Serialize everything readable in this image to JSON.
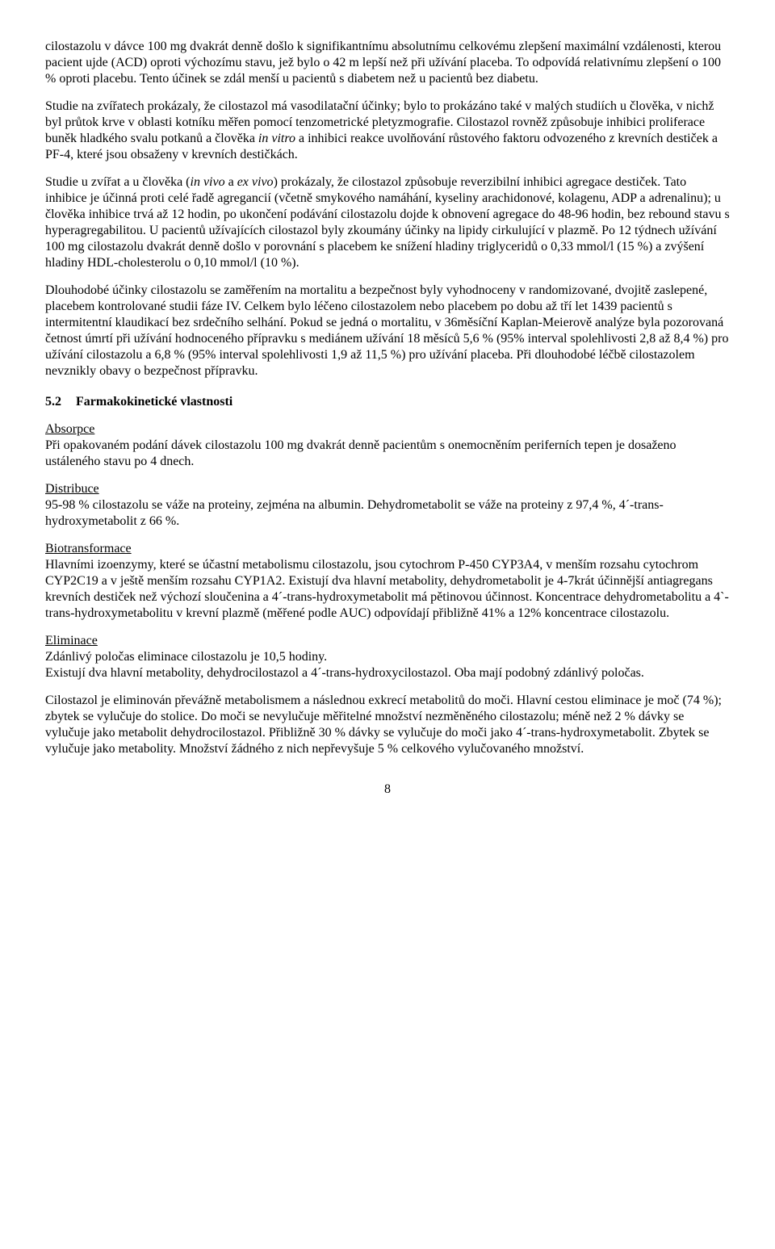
{
  "paragraphs": {
    "p1": "cilostazolu v dávce 100 mg dvakrát denně došlo k signifikantnímu absolutnímu celkovému zlepšení maximální vzdálenosti, kterou pacient ujde (ACD) oproti výchozímu stavu, jež bylo o 42 m lepší než při užívání placeba. To odpovídá relativnímu zlepšení o 100 % oproti placebu. Tento účinek se zdál menší u pacientů s diabetem než u pacientů bez diabetu.",
    "p2_pre": "Studie na zvířatech prokázaly, že cilostazol má vasodilatační účinky; bylo to prokázáno také v malých studiích u člověka, v nichž byl průtok krve v oblasti kotníku měřen pomocí tenzometrické pletyzmografie. Cilostazol rovněž způsobuje inhibici proliferace buněk hladkého svalu potkanů a člověka ",
    "p2_it": "in vitro",
    "p2_post": " a inhibici reakce uvolňování růstového faktoru odvozeného z krevních destiček a PF-4, které jsou obsaženy v krevních destičkách.",
    "p3_pre": "Studie u zvířat a u člověka (",
    "p3_it1": "in vivo",
    "p3_mid": " a ",
    "p3_it2": "ex vivo",
    "p3_post": ") prokázaly, že cilostazol způsobuje reverzibilní inhibici agregace destiček. Tato inhibice je účinná proti celé řadě agregancií (včetně smykového namáhání, kyseliny arachidonové, kolagenu, ADP a adrenalinu); u člověka inhibice trvá až 12 hodin, po ukončení podávání cilostazolu dojde k obnovení agregace do 48-96 hodin, bez rebound stavu s hyperagregabilitou. U pacientů užívajících cilostazol byly zkoumány účinky na lipidy cirkulující v plazmě. Po 12 týdnech užívání 100 mg cilostazolu dvakrát denně došlo v porovnání s placebem ke snížení hladiny triglyceridů o 0,33 mmol/l (15 %) a zvýšení hladiny HDL-cholesterolu o 0,10 mmol/l (10 %).",
    "p4": "Dlouhodobé účinky cilostazolu se zaměřením na mortalitu a bezpečnost byly vyhodnoceny v randomizované, dvojitě zaslepené, placebem kontrolované studii fáze IV. Celkem bylo léčeno cilostazolem nebo placebem po dobu až tří let 1439 pacientů s intermitentní klaudikací bez srdečního selhání. Pokud se jedná o mortalitu, v 36měsíční Kaplan-Meierově analýze byla pozorovaná četnost úmrtí při užívání hodnoceného přípravku s mediánem užívání 18 měsíců 5,6 % (95% interval spolehlivosti 2,8 až 8,4 %) pro užívání cilostazolu a 6,8 % (95% interval spolehlivosti 1,9 až 11,5 %) pro užívání placeba. Při dlouhodobé léčbě cilostazolem nevznikly obavy o bezpečnost přípravku."
  },
  "section52": {
    "num": "5.2",
    "title": "Farmakokinetické vlastnosti"
  },
  "absorpce": {
    "heading": "Absorpce",
    "text": "Při opakovaném podání dávek cilostazolu 100 mg dvakrát denně pacientům s onemocněním periferních tepen je dosaženo ustáleného stavu po 4 dnech."
  },
  "distribuce": {
    "heading": "Distribuce",
    "text": "95-98 % cilostazolu se váže na proteiny, zejména na albumin. Dehydrometabolit se váže na proteiny z 97,4 %, 4´-trans-hydroxymetabolit z 66 %."
  },
  "biotrans": {
    "heading": "Biotransformace",
    "text": "Hlavními izoenzymy, které se účastní metabolismu cilostazolu, jsou cytochrom P-450 CYP3A4, v menším rozsahu cytochrom CYP2C19 a v ještě menším rozsahu CYP1A2. Existují dva hlavní metabolity, dehydrometabolit je 4-7krát účinnější antiagregans krevních destiček než výchozí sloučenina a 4´-trans-hydroxymetabolit má pětinovou účinnost. Koncentrace dehydrometabolitu a 4`-trans-hydroxymetabolitu v krevní plazmě (měřené podle AUC) odpovídají přibližně 41% a 12% koncentrace cilostazolu."
  },
  "eliminace": {
    "heading": "Eliminace",
    "text1": "Zdánlivý poločas eliminace cilostazolu je 10,5 hodiny.",
    "text2": "Existují dva hlavní metabolity, dehydrocilostazol a 4´-trans-hydroxycilostazol. Oba mají podobný zdánlivý poločas.",
    "text3": "Cilostazol je eliminován převážně metabolismem a následnou exkrecí metabolitů do moči. Hlavní cestou eliminace je moč (74 %); zbytek se vylučuje do stolice. Do moči se nevylučuje měřitelné množství nezměněného cilostazolu; méně než 2 % dávky se vylučuje jako metabolit dehydrocilostazol. Přibližně 30 % dávky se vylučuje do moči jako 4´-trans-hydroxymetabolit. Zbytek se vylučuje jako metabolity. Množství žádného z nich nepřevyšuje 5 % celkového vylučovaného množství."
  },
  "pageNumber": "8"
}
